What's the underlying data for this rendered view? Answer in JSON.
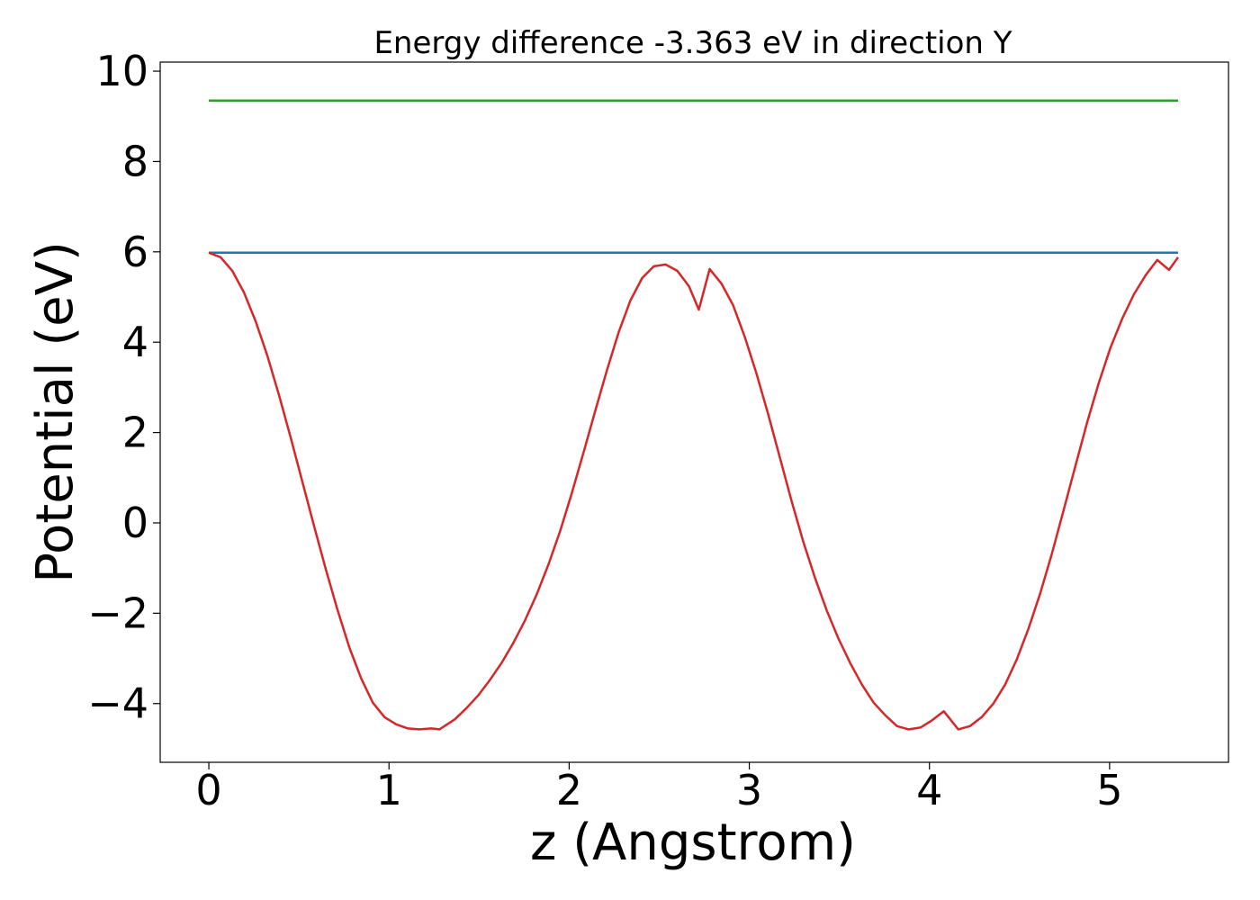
{
  "chart_data": {
    "type": "line",
    "title": "Energy difference -3.363 eV in direction Y",
    "xlabel": "z (Angstrom)",
    "ylabel": "Potential (eV)",
    "xlim": [
      -0.27,
      5.66
    ],
    "ylim": [
      -5.3,
      10.2
    ],
    "xticks": [
      0,
      1,
      2,
      3,
      4,
      5
    ],
    "xtick_labels": [
      "0",
      "1",
      "2",
      "3",
      "4",
      "5"
    ],
    "yticks": [
      -4,
      -2,
      0,
      2,
      4,
      6,
      8,
      10
    ],
    "ytick_labels": [
      "−4",
      "−2",
      "0",
      "2",
      "4",
      "6",
      "8",
      "10"
    ],
    "grid": false,
    "series": [
      {
        "color": "#2ca02c",
        "x": [
          0,
          5.38
        ],
        "y": [
          9.35,
          9.35
        ]
      },
      {
        "color": "#1f77b4",
        "x": [
          0,
          5.38
        ],
        "y": [
          5.98,
          5.98
        ]
      },
      {
        "color": "#d62728",
        "x": [
          0,
          0.065,
          0.13,
          0.195,
          0.26,
          0.325,
          0.39,
          0.455,
          0.52,
          0.585,
          0.65,
          0.715,
          0.78,
          0.845,
          0.91,
          0.975,
          1.04,
          1.105,
          1.17,
          1.235,
          1.28,
          1.3,
          1.365,
          1.43,
          1.495,
          1.56,
          1.625,
          1.69,
          1.755,
          1.82,
          1.885,
          1.95,
          2.015,
          2.08,
          2.145,
          2.21,
          2.275,
          2.34,
          2.405,
          2.47,
          2.535,
          2.6,
          2.665,
          2.72,
          2.78,
          2.845,
          2.91,
          2.975,
          3.04,
          3.105,
          3.17,
          3.235,
          3.3,
          3.365,
          3.43,
          3.495,
          3.56,
          3.625,
          3.69,
          3.755,
          3.82,
          3.885,
          3.95,
          4.015,
          4.08,
          4.16,
          4.225,
          4.29,
          4.355,
          4.42,
          4.485,
          4.55,
          4.615,
          4.68,
          4.745,
          4.81,
          4.875,
          4.94,
          5.005,
          5.07,
          5.135,
          5.2,
          5.265,
          5.33,
          5.38
        ],
        "y": [
          5.98,
          5.88,
          5.58,
          5.1,
          4.46,
          3.7,
          2.82,
          1.88,
          0.9,
          -0.08,
          -1.04,
          -1.94,
          -2.76,
          -3.44,
          -3.98,
          -4.3,
          -4.46,
          -4.55,
          -4.57,
          -4.55,
          -4.57,
          -4.52,
          -4.35,
          -4.1,
          -3.82,
          -3.48,
          -3.1,
          -2.66,
          -2.16,
          -1.58,
          -0.92,
          -0.18,
          0.66,
          1.56,
          2.48,
          3.38,
          4.22,
          4.92,
          5.42,
          5.68,
          5.72,
          5.58,
          5.24,
          4.72,
          5.62,
          5.3,
          4.82,
          4.12,
          3.3,
          2.4,
          1.44,
          0.48,
          -0.42,
          -1.22,
          -1.94,
          -2.56,
          -3.1,
          -3.58,
          -3.98,
          -4.26,
          -4.5,
          -4.57,
          -4.53,
          -4.37,
          -4.17,
          -4.57,
          -4.5,
          -4.3,
          -4.0,
          -3.58,
          -3.02,
          -2.34,
          -1.56,
          -0.68,
          0.28,
          1.26,
          2.22,
          3.1,
          3.88,
          4.52,
          5.06,
          5.48,
          5.82,
          5.6,
          5.88
        ]
      }
    ]
  }
}
